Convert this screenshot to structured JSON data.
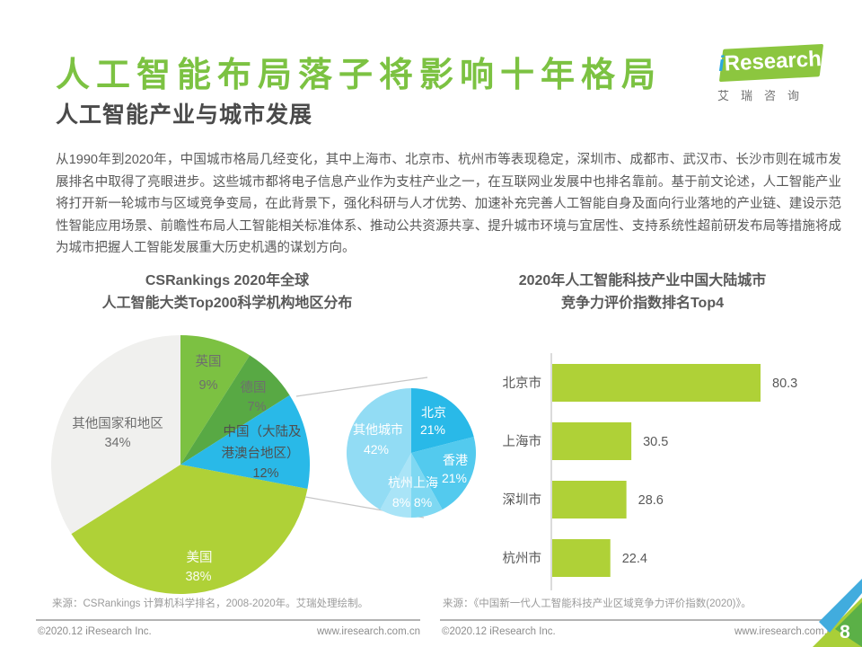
{
  "header": {
    "title": "人工智能布局落子将影响十年格局",
    "subtitle": "人工智能产业与城市发展"
  },
  "logo": {
    "i": "i",
    "research": "Research",
    "caption": "艾瑞咨询"
  },
  "body": {
    "paragraph": "从1990年到2020年，中国城市格局几经变化，其中上海市、北京市、杭州市等表现稳定，深圳市、成都市、武汉市、长沙市则在城市发展排名中取得了亮眼进步。这些城市都将电子信息产业作为支柱产业之一，在互联网业发展中也排名靠前。基于前文论述，人工智能产业将打开新一轮城市与区域竞争变局，在此背景下，强化科研与人才优势、加速补充完善人工智能自身及面向行业落地的产业链、建设示范性智能应用场景、前瞻性布局人工智能相关标准体系、推动公共资源共享、提升城市环境与宜居性、支持系统性超前研发布局等措施将成为城市把握人工智能发展重大历史机遇的谋划方向。"
  },
  "charts": {
    "pie": {
      "title_line1": "CSRankings  2020年全球",
      "title_line2": "人工智能大类Top200科学机构地区分布"
    },
    "bar": {
      "title_line1": "2020年人工智能科技产业中国大陆城市",
      "title_line2": "竞争力评价指数排名Top4"
    }
  },
  "chart_data": [
    {
      "type": "pie",
      "title": "CSRankings 2020年全球人工智能大类Top200科学机构地区分布",
      "slices": [
        {
          "label": "英国",
          "value": 9,
          "color": "#7CC142",
          "label_lines": [
            "英国",
            "9%"
          ]
        },
        {
          "label": "德国",
          "value": 7,
          "color": "#58A944",
          "label_lines": [
            "德国",
            "7%"
          ]
        },
        {
          "label": "中国（大陆及港澳台地区）",
          "value": 12,
          "color": "#29B9E8",
          "label_lines": [
            "中国（大陆及",
            "港澳台地区）",
            "12%"
          ]
        },
        {
          "label": "美国",
          "value": 38,
          "color": "#AFD137",
          "label_lines": [
            "美国",
            "38%"
          ]
        },
        {
          "label": "其他国家和地区",
          "value": 34,
          "color": "#F0F0EE",
          "label_lines": [
            "其他国家和地区",
            "34%"
          ]
        }
      ]
    },
    {
      "type": "pie",
      "title": "中国（大陆及港澳台地区）细分",
      "slices": [
        {
          "label": "北京",
          "value": 21,
          "color": "#29B9E8",
          "label_lines": [
            "北京",
            "21%"
          ]
        },
        {
          "label": "香港",
          "value": 21,
          "color": "#53CAEE",
          "label_lines": [
            "香港",
            "21%"
          ]
        },
        {
          "label": "上海",
          "value": 8,
          "color": "#7ED8F2",
          "label_lines": []
        },
        {
          "label": "杭州",
          "value": 8,
          "color": "#A9E4F7",
          "label_lines": []
        },
        {
          "label": "其他城市",
          "value": 42,
          "color": "#92DCF4",
          "label_lines": [
            "其他城市",
            "42%"
          ]
        }
      ],
      "combined_label": [
        "杭州上海",
        "8% 8%"
      ]
    },
    {
      "type": "bar",
      "title": "2020年人工智能科技产业中国大陆城市竞争力评价指数排名Top4",
      "categories": [
        "北京市",
        "上海市",
        "深圳市",
        "杭州市"
      ],
      "values": [
        80.3,
        30.5,
        28.6,
        22.4
      ],
      "value_labels": [
        "80.3",
        "30.5",
        "28.6",
        "22.4"
      ],
      "color": "#AFD137",
      "xlim": [
        0,
        90
      ],
      "orientation": "horizontal"
    }
  ],
  "sources": {
    "left": "来源：CSRankings 计算机科学排名，2008-2020年。艾瑞处理绘制。",
    "right": "来源：《中国新一代人工智能科技产业区域竞争力评价指数(2020)》。"
  },
  "footer": {
    "copyright": "©2020.12 iResearch Inc.",
    "site": "www.iresearch.com.cn",
    "page_number": "8"
  },
  "colors": {
    "accent_green": "#7CC242",
    "lime": "#AFD137",
    "dark_green": "#58A944",
    "cyan": "#29B9E8",
    "corner_blue": "#41ACDE",
    "corner_green": "#5BB047",
    "corner_lime": "#A9CF38"
  }
}
